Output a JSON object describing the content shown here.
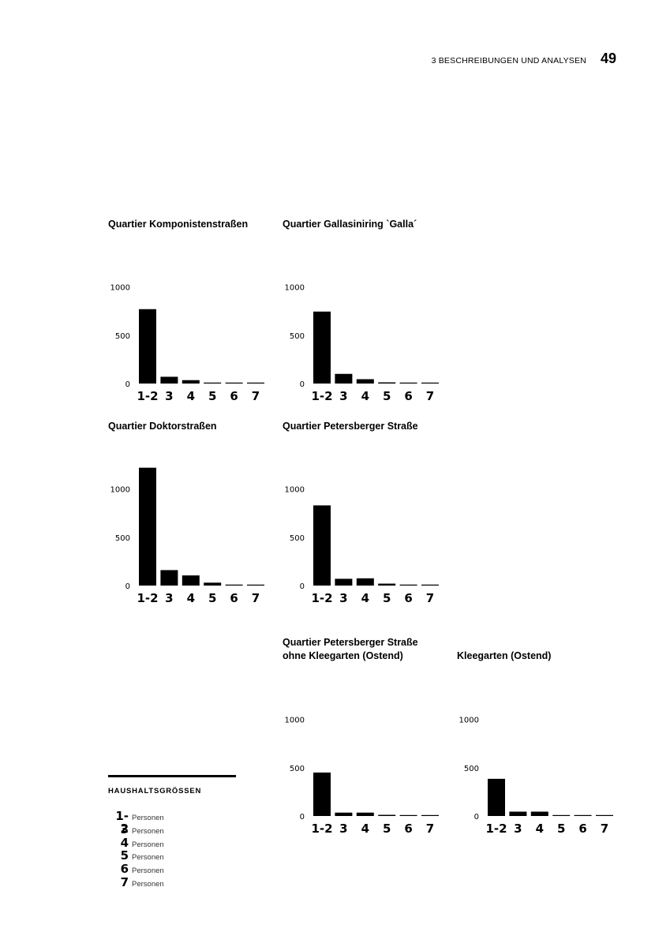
{
  "header": {
    "section": "3 BESCHREIBUNGEN UND ANALYSEN",
    "page_number": "49"
  },
  "chart_data": [
    {
      "type": "bar",
      "title": "Quartier Komponistenstraßen",
      "categories": [
        "1-2",
        "3",
        "4",
        "5",
        "6",
        "7"
      ],
      "values": [
        770,
        70,
        35,
        10,
        0,
        0
      ],
      "ylim": [
        0,
        1000
      ],
      "yticks": [
        "0",
        "500",
        "1000"
      ],
      "xlabel": "",
      "ylabel": ""
    },
    {
      "type": "bar",
      "title": "Quartier Gallasiniring `Galla´",
      "categories": [
        "1-2",
        "3",
        "4",
        "5",
        "6",
        "7"
      ],
      "values": [
        745,
        100,
        45,
        12,
        8,
        0
      ],
      "ylim": [
        0,
        1000
      ],
      "yticks": [
        "0",
        "500",
        "1000"
      ],
      "xlabel": "",
      "ylabel": ""
    },
    {
      "type": "bar",
      "title": "Quartier Doktorstraßen",
      "categories": [
        "1-2",
        "3",
        "4",
        "5",
        "6",
        "7"
      ],
      "values": [
        1220,
        160,
        105,
        30,
        10,
        8
      ],
      "ylim": [
        0,
        1000
      ],
      "yticks": [
        "0",
        "500",
        "1000"
      ],
      "xlabel": "",
      "ylabel": ""
    },
    {
      "type": "bar",
      "title": "Quartier Petersberger Straße",
      "categories": [
        "1-2",
        "3",
        "4",
        "5",
        "6",
        "7"
      ],
      "values": [
        830,
        70,
        75,
        20,
        10,
        10
      ],
      "ylim": [
        0,
        1000
      ],
      "yticks": [
        "0",
        "500",
        "1000"
      ],
      "xlabel": "",
      "ylabel": ""
    },
    {
      "type": "bar",
      "title": "Quartier Petersberger Straße\nohne Kleegarten (Ostend)",
      "title_lines": [
        "Quartier Petersberger Straße",
        "ohne Kleegarten (Ostend)"
      ],
      "categories": [
        "1-2",
        "3",
        "4",
        "5",
        "6",
        "7"
      ],
      "values": [
        450,
        35,
        35,
        12,
        8,
        0
      ],
      "ylim": [
        0,
        1000
      ],
      "yticks": [
        "0",
        "500",
        "1000"
      ],
      "xlabel": "",
      "ylabel": ""
    },
    {
      "type": "bar",
      "title": "Kleegarten (Ostend)",
      "categories": [
        "1-2",
        "3",
        "4",
        "5",
        "6",
        "7"
      ],
      "values": [
        385,
        45,
        45,
        8,
        8,
        8
      ],
      "ylim": [
        0,
        1000
      ],
      "yticks": [
        "0",
        "500",
        "1000"
      ],
      "xlabel": "",
      "ylabel": ""
    }
  ],
  "legend": {
    "title": "HAUSHALTSGRÖSSEN",
    "items": [
      {
        "num": "1-2",
        "unit": "Personen"
      },
      {
        "num": "3",
        "unit": "Personen"
      },
      {
        "num": "4",
        "unit": "Personen"
      },
      {
        "num": "5",
        "unit": "Personen"
      },
      {
        "num": "6",
        "unit": "Personen"
      },
      {
        "num": "7",
        "unit": "Personen"
      }
    ]
  },
  "colors": {
    "bar": "#000000",
    "background": "#ffffff"
  }
}
